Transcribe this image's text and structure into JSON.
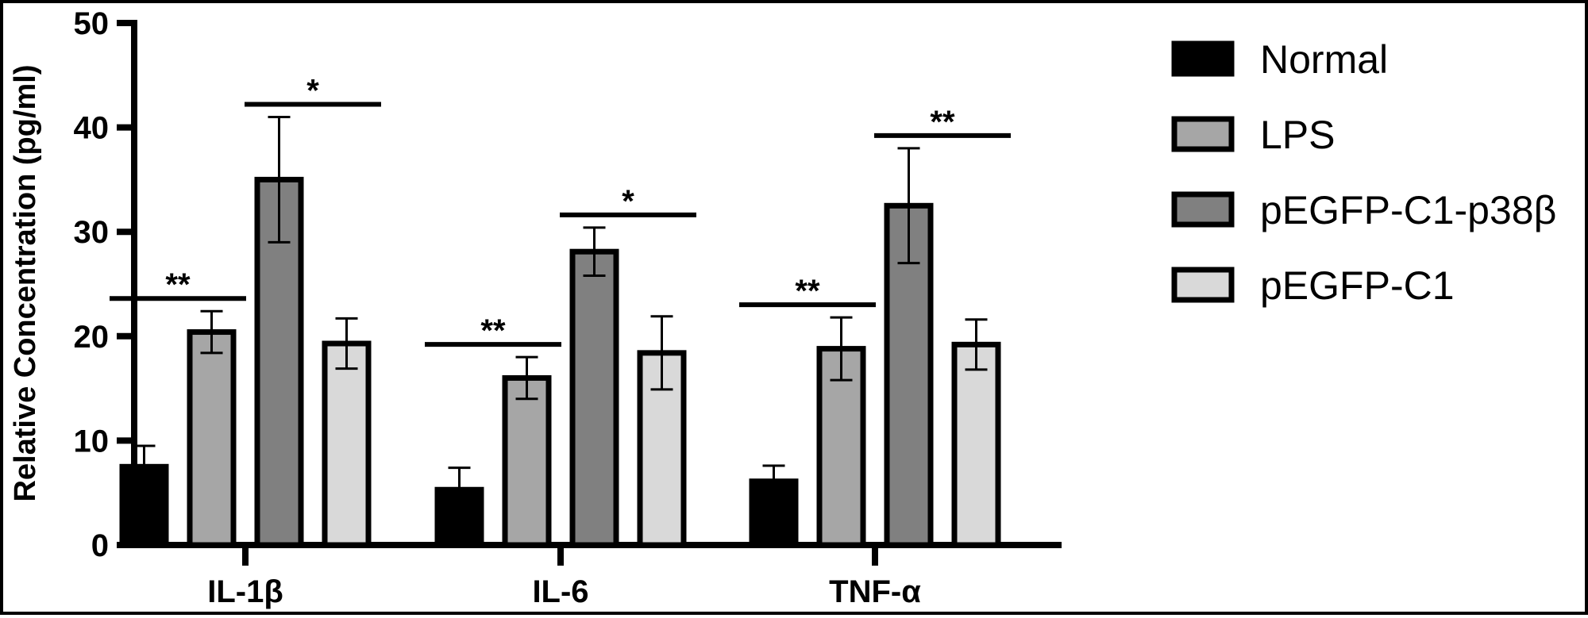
{
  "chart_data": {
    "type": "bar",
    "title": "",
    "xlabel": "",
    "ylabel": "Relative Concentration (pg/ml)",
    "ylim": [
      0,
      50
    ],
    "yticks": [
      0,
      10,
      20,
      30,
      40,
      50
    ],
    "grid": false,
    "legend_position": "right",
    "categories": [
      "IL-1β",
      "IL-6",
      "TNF-α"
    ],
    "series": [
      {
        "name": "Normal",
        "color": "#000000",
        "values": [
          7.5,
          5.3,
          6.1
        ],
        "errors": [
          2.0,
          2.1,
          1.5
        ]
      },
      {
        "name": "LPS",
        "color": "#a6a6a6",
        "values": [
          20.4,
          16.0,
          18.8
        ],
        "errors": [
          2.0,
          2.0,
          3.0
        ]
      },
      {
        "name": "pEGFP-C1-p38β",
        "color": "#808080",
        "values": [
          35.0,
          28.1,
          32.5
        ],
        "errors": [
          6.0,
          2.3,
          5.5
        ]
      },
      {
        "name": "pEGFP-C1",
        "color": "#d9d9d9",
        "values": [
          19.3,
          18.4,
          19.2
        ],
        "errors": [
          2.4,
          3.5,
          2.4
        ]
      }
    ],
    "significance": [
      {
        "category": 0,
        "from_series": 0,
        "to_series": 1,
        "label": "**"
      },
      {
        "category": 0,
        "from_series": 2,
        "to_series": 3,
        "label": "*"
      },
      {
        "category": 1,
        "from_series": 0,
        "to_series": 1,
        "label": "**"
      },
      {
        "category": 1,
        "from_series": 2,
        "to_series": 3,
        "label": "*"
      },
      {
        "category": 2,
        "from_series": 0,
        "to_series": 1,
        "label": "**"
      },
      {
        "category": 2,
        "from_series": 2,
        "to_series": 3,
        "label": "**"
      }
    ]
  }
}
